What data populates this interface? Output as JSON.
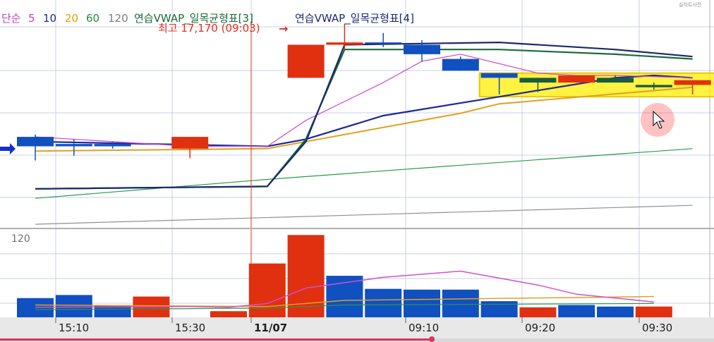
{
  "legend": {
    "items": [
      {
        "text": "단순",
        "color": "#c040c0"
      },
      {
        "text": "5",
        "color": "#c040c0"
      },
      {
        "text": "10",
        "color": "#1a2a9a"
      },
      {
        "text": "20",
        "color": "#e0a000"
      },
      {
        "text": "60",
        "color": "#2a8a3a"
      },
      {
        "text": "120",
        "color": "#808080"
      },
      {
        "text": "연습VWAP_일목균형표[3]",
        "color": "#1a6a3a"
      },
      {
        "text": "연습VWAP_일목균형표[4]",
        "color": "#1a2a6a"
      }
    ],
    "corner_badge": "실차트사전"
  },
  "annotations": {
    "high_label": "최고 17,170 (09:03)",
    "high_arrow": "→"
  },
  "volume_panel": {
    "ma_label": "120"
  },
  "colors": {
    "up": "#e03010",
    "down": "#1050c0",
    "dark_green": "#1a5a40",
    "ma5": "#d050d0",
    "ma10": "#1a2a9a",
    "ma20": "#e0a020",
    "ma60": "#2a9a4a",
    "ma120": "#909090",
    "vwap3": "#1a6a3a",
    "vwap4": "#1a2a6a",
    "highlight": "#ffee00",
    "grid": "#c8d0e0",
    "axis_bg": "#e8e8e8"
  },
  "chart_data": [
    {
      "type": "candlestick",
      "title": "",
      "x_axis": {
        "tick_labels": [
          "15:10",
          "15:30",
          "11/07",
          "09:10",
          "09:20",
          "09:30"
        ]
      },
      "candles": [
        {
          "i": 0,
          "open": 16690,
          "close": 16650,
          "high": 16700,
          "low": 16590,
          "color": "down"
        },
        {
          "i": 1,
          "open": 16660,
          "close": 16650,
          "high": 16680,
          "low": 16610,
          "color": "down"
        },
        {
          "i": 2,
          "open": 16660,
          "close": 16650,
          "high": 16670,
          "low": 16640,
          "color": "down"
        },
        {
          "i": 4,
          "open": 16640,
          "close": 16690,
          "high": 16690,
          "low": 16600,
          "color": "up"
        },
        {
          "i": 7,
          "open": 16940,
          "close": 17080,
          "high": 17080,
          "low": 16940,
          "color": "up"
        },
        {
          "i": 8,
          "open": 17080,
          "close": 17090,
          "high": 17170,
          "low": 17060,
          "color": "up"
        },
        {
          "i": 9,
          "open": 17090,
          "close": 17090,
          "high": 17130,
          "low": 17070,
          "color": "down"
        },
        {
          "i": 10,
          "open": 17080,
          "close": 17040,
          "high": 17100,
          "low": 17010,
          "color": "down"
        },
        {
          "i": 11,
          "open": 17020,
          "close": 16970,
          "high": 17030,
          "low": 16970,
          "color": "down"
        },
        {
          "i": 12,
          "open": 16960,
          "close": 16940,
          "high": 16960,
          "low": 16870,
          "color": "down"
        },
        {
          "i": 13,
          "open": 16940,
          "close": 16920,
          "high": 16940,
          "low": 16880,
          "color": "dark"
        },
        {
          "i": 14,
          "open": 16920,
          "close": 16950,
          "high": 16950,
          "low": 16920,
          "color": "up"
        },
        {
          "i": 15,
          "open": 16940,
          "close": 16920,
          "high": 16950,
          "low": 16920,
          "color": "dark"
        },
        {
          "i": 16,
          "open": 16910,
          "close": 16900,
          "high": 16920,
          "low": 16890,
          "color": "dark"
        },
        {
          "i": 17,
          "open": 16910,
          "close": 16930,
          "high": 16930,
          "low": 16870,
          "color": "up"
        }
      ],
      "lines": {
        "ma5": [
          [
            0,
            16690
          ],
          [
            4,
            16650
          ],
          [
            6,
            16650
          ],
          [
            7,
            16760
          ],
          [
            9,
            16920
          ],
          [
            10,
            17010
          ],
          [
            11,
            17040
          ],
          [
            12,
            17000
          ],
          [
            13,
            16960
          ],
          [
            14,
            16950
          ],
          [
            15,
            16950
          ],
          [
            17,
            16940
          ]
        ],
        "ma10": [
          [
            0,
            16670
          ],
          [
            6,
            16650
          ],
          [
            7,
            16680
          ],
          [
            9,
            16780
          ],
          [
            12,
            16860
          ],
          [
            15,
            16940
          ],
          [
            16,
            16950
          ],
          [
            17,
            16940
          ]
        ],
        "ma20": [
          [
            0,
            16630
          ],
          [
            6,
            16640
          ],
          [
            7,
            16670
          ],
          [
            11,
            16790
          ],
          [
            12,
            16830
          ],
          [
            17,
            16900
          ]
        ],
        "ma60": [
          [
            0,
            16430
          ],
          [
            6,
            16510
          ],
          [
            11,
            16570
          ],
          [
            17,
            16640
          ]
        ],
        "ma120": [
          [
            0,
            16320
          ],
          [
            17,
            16400
          ]
        ],
        "vwap3": [
          [
            0,
            16470
          ],
          [
            6,
            16480
          ],
          [
            7,
            16680
          ],
          [
            8,
            17060
          ],
          [
            12,
            17060
          ],
          [
            15,
            17040
          ],
          [
            17,
            17020
          ]
        ],
        "vwap4": [
          [
            0,
            16470
          ],
          [
            6,
            16480
          ],
          [
            7,
            16670
          ],
          [
            8,
            17080
          ],
          [
            12,
            17090
          ],
          [
            15,
            17060
          ],
          [
            17,
            17030
          ]
        ]
      },
      "highlight_range": {
        "from": 12,
        "to": 17,
        "top": 16960,
        "bottom": 16860
      },
      "y_range": [
        16320,
        17180
      ]
    },
    {
      "type": "bar",
      "title": "",
      "ma_label": "120",
      "volumes": [
        {
          "i": 0,
          "value": 25,
          "color": "down"
        },
        {
          "i": 1,
          "value": 29,
          "color": "down"
        },
        {
          "i": 2,
          "value": 16,
          "color": "down"
        },
        {
          "i": 3,
          "value": 27,
          "color": "up"
        },
        {
          "i": 5,
          "value": 8,
          "color": "up"
        },
        {
          "i": 6,
          "value": 70,
          "color": "up"
        },
        {
          "i": 7,
          "value": 107,
          "color": "up"
        },
        {
          "i": 8,
          "value": 54,
          "color": "down"
        },
        {
          "i": 9,
          "value": 37,
          "color": "down"
        },
        {
          "i": 10,
          "value": 36,
          "color": "down"
        },
        {
          "i": 11,
          "value": 36,
          "color": "down"
        },
        {
          "i": 12,
          "value": 21,
          "color": "down"
        },
        {
          "i": 13,
          "value": 13,
          "color": "up"
        },
        {
          "i": 14,
          "value": 16,
          "color": "down"
        },
        {
          "i": 15,
          "value": 14,
          "color": "down"
        },
        {
          "i": 16,
          "value": 14,
          "color": "up"
        }
      ],
      "ma5_line": [
        [
          0,
          13
        ],
        [
          4,
          14
        ],
        [
          5,
          13
        ],
        [
          6,
          18
        ],
        [
          7,
          38
        ],
        [
          9,
          52
        ],
        [
          11,
          60
        ],
        [
          13,
          42
        ],
        [
          14,
          30
        ],
        [
          16,
          20
        ]
      ],
      "ma20_line": [
        [
          0,
          16
        ],
        [
          6,
          14
        ],
        [
          8,
          22
        ],
        [
          16,
          27
        ]
      ],
      "ma60_line": [
        [
          0,
          10
        ],
        [
          6,
          12
        ],
        [
          8,
          16
        ],
        [
          16,
          18
        ]
      ],
      "y_range": [
        0,
        110
      ]
    }
  ]
}
